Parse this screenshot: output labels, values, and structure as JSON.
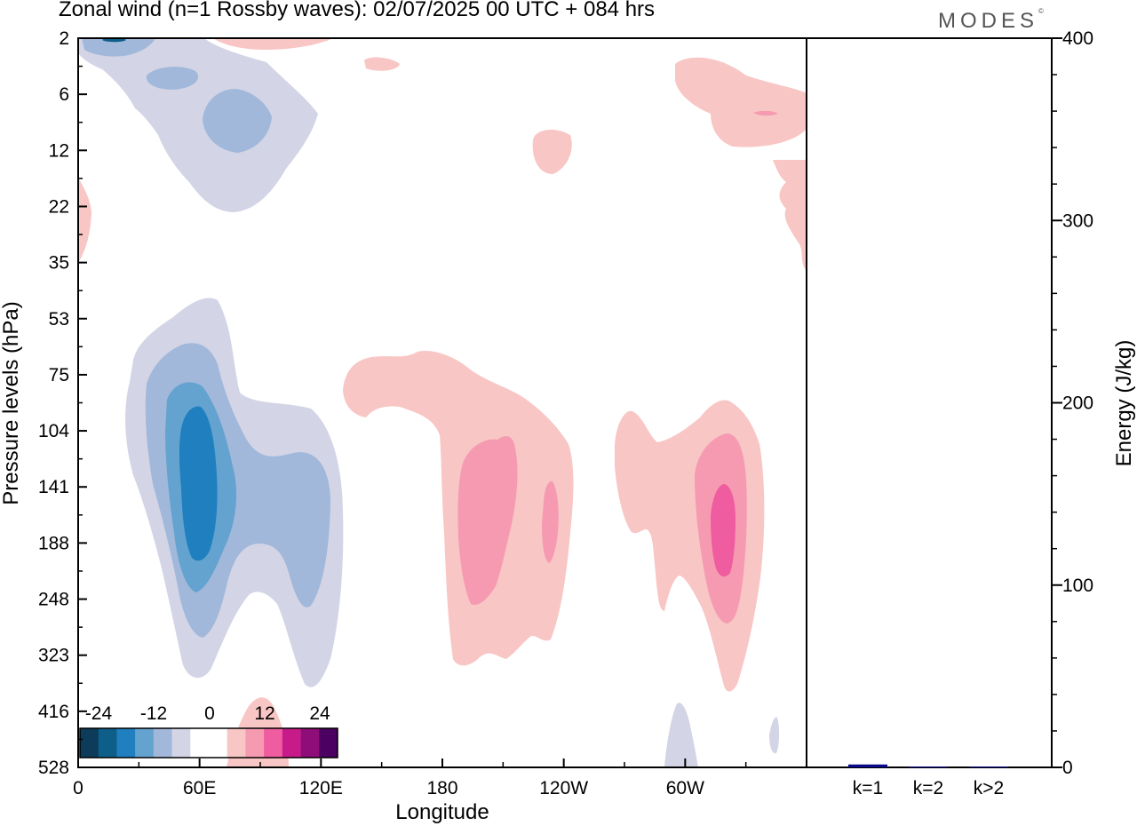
{
  "title": "Zonal wind (n=1 Rossby waves):  02/07/2025  00 UTC  + 084 hrs",
  "logo": "MODES",
  "logo_mark": "©",
  "chart_data": [
    {
      "type": "heatmap",
      "subtype": "filled-contour",
      "xlabel": "Longitude",
      "ylabel": "Pressure levels (hPa)",
      "x_ticks": [
        "0",
        "60E",
        "120E",
        "180",
        "120W",
        "60W"
      ],
      "y_ticks": [
        "2",
        "6",
        "12",
        "22",
        "35",
        "53",
        "75",
        "104",
        "141",
        "188",
        "248",
        "323",
        "416",
        "528"
      ],
      "y_scale": "level index (pressure decreasing upward)",
      "colorbar": {
        "tick_labels": [
          "-24",
          "-12",
          "0",
          "12",
          "24"
        ],
        "levels": [
          -30,
          -27,
          -24,
          -21,
          -18,
          -15,
          -12,
          -9,
          -6,
          -3,
          0,
          3,
          6,
          9,
          12,
          15,
          18,
          21,
          24,
          27,
          30
        ],
        "colors": [
          "#0d3b5a",
          "#0e5e8a",
          "#1f7fbf",
          "#64a3cf",
          "#a2b8da",
          "#d3d5e6",
          "#ffffff",
          "#ffffff",
          "#f8c6c4",
          "#f69ab2",
          "#ef5c9f",
          "#c81b8a",
          "#8f0d79",
          "#4b0062"
        ]
      },
      "features": [
        {
          "name": "easterly maximum near 60E",
          "longitude": "60E",
          "pressure_hPa": 141,
          "value_min": -18
        },
        {
          "name": "westerly maximum near 160W",
          "longitude": "160W",
          "pressure_hPa": 141,
          "value_max": 9
        },
        {
          "name": "westerly maximum near 40W",
          "longitude": "40W",
          "pressure_hPa": 188,
          "value_max": 12
        },
        {
          "name": "upper easterlies near 30E-80E",
          "longitude": "30E-80E",
          "pressure_hPa": 8,
          "value_min": -9
        }
      ]
    },
    {
      "type": "bar",
      "categories": [
        "k=1",
        "k=2",
        "k>2"
      ],
      "values": [
        1.6,
        0.4,
        0.4
      ],
      "ylabel": "Energy (J/kg)",
      "ylim": [
        0,
        400
      ],
      "y_ticks": [
        "0",
        "100",
        "200",
        "300",
        "400"
      ],
      "color": "#0a0a8c"
    }
  ]
}
